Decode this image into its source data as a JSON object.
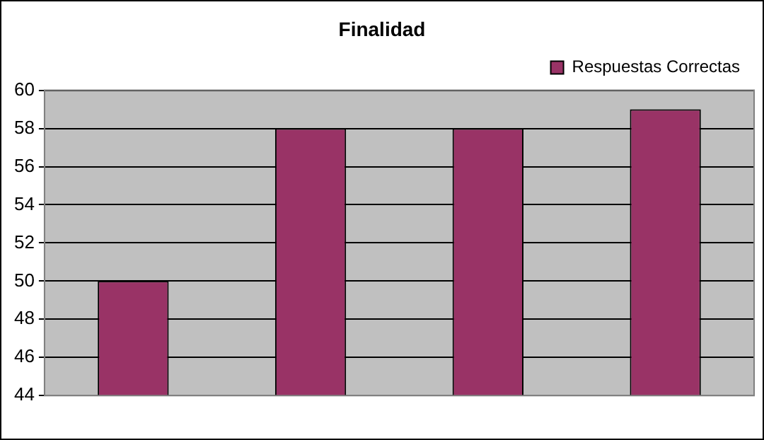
{
  "chart_data": {
    "type": "bar",
    "title": "Finalidad",
    "categories": [
      null,
      null,
      null,
      null
    ],
    "series": [
      {
        "name": "Respuestas Correctas",
        "color": "#993366",
        "values": [
          50,
          58,
          58,
          59
        ]
      }
    ],
    "ylim": [
      44,
      60
    ],
    "yticks": [
      44,
      46,
      48,
      50,
      52,
      54,
      56,
      58,
      60
    ],
    "grid": "y",
    "legend": "top right"
  }
}
